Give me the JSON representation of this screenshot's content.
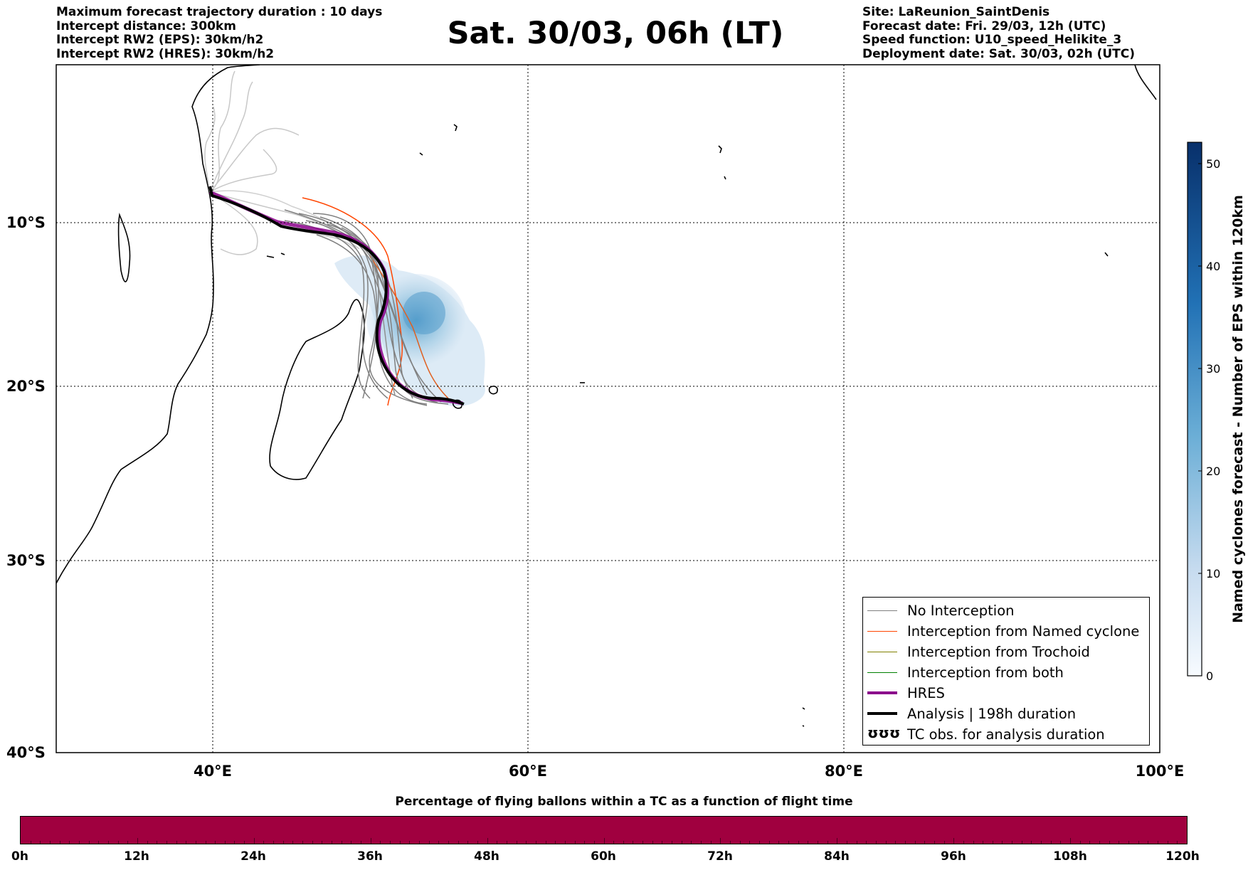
{
  "header_left": [
    "Maximum forecast trajectory duration : 10 days",
    "Intercept distance: 300km",
    "Intercept RW2 (EPS):  30km/h2",
    "Intercept RW2 (HRES): 30km/h2"
  ],
  "title": "Sat. 30/03, 06h (LT)",
  "header_right": [
    "Site: LaReunion_SaintDenis",
    "Forecast date: Fri. 29/03, 12h (UTC)",
    "Speed function: U10_speed_Helikite_3",
    "Deployment date: Sat. 30/03, 02h (UTC)"
  ],
  "map": {
    "lon_range": [
      30,
      100
    ],
    "lat_range": [
      0,
      -40
    ],
    "lat_ticks": [
      {
        "value": -10,
        "label": "10°S"
      },
      {
        "value": -20,
        "label": "20°S"
      },
      {
        "value": -30,
        "label": "30°S"
      },
      {
        "value": -40,
        "label": "40°S"
      }
    ],
    "lon_ticks": [
      {
        "value": 40,
        "label": "40°E"
      },
      {
        "value": 60,
        "label": "60°E"
      },
      {
        "value": 80,
        "label": "80°E"
      },
      {
        "value": 100,
        "label": "100°E"
      }
    ],
    "grid": "dotted"
  },
  "colorbar": {
    "title": "Named cyclones forecast - Number of EPS within 120km",
    "range": [
      0,
      52
    ],
    "ticks": [
      "0",
      "10",
      "20",
      "30",
      "40",
      "50"
    ],
    "colors": [
      "#e6eff9",
      "#08306b"
    ]
  },
  "legend": [
    {
      "label": "No Interception",
      "color": "#808080",
      "style": "thin"
    },
    {
      "label": "Interception from Named cyclone",
      "color": "#ff4500",
      "style": "thin"
    },
    {
      "label": "Interception from Trochoid",
      "color": "#808000",
      "style": "thin"
    },
    {
      "label": "Interception from both",
      "color": "#008000",
      "style": "thin"
    },
    {
      "label": "HRES",
      "color": "#8b008b",
      "style": "thick"
    },
    {
      "label": "Analysis | 198h duration",
      "color": "#000000",
      "style": "thick"
    },
    {
      "label": "TC obs. for analysis duration",
      "symbol": "ʊʊʊ"
    }
  ],
  "bottom_bar": {
    "title": "Percentage of flying ballons within a TC as a function of flight time",
    "color": "#a0003f",
    "ticks": [
      "0h",
      "12h",
      "24h",
      "36h",
      "48h",
      "60h",
      "72h",
      "84h",
      "96h",
      "108h",
      "120h"
    ]
  },
  "site": {
    "name": "LaReunion_SaintDenis",
    "lon": 55.5,
    "lat": -20.9
  }
}
